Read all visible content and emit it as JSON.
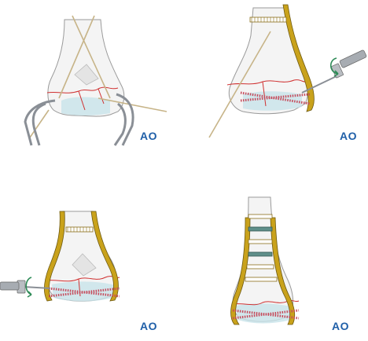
{
  "logo_text": "AO",
  "panels": [
    {
      "id": "step-1",
      "logo": "AO"
    },
    {
      "id": "step-2",
      "logo": "AO"
    },
    {
      "id": "step-3",
      "logo": "AO"
    },
    {
      "id": "step-4",
      "logo": "AO"
    }
  ],
  "colors": {
    "bone_fill": "#f4f4f4",
    "bone_stroke": "#9a9a9a",
    "cartilage": "#c8e3ea",
    "fracture_line": "#d03030",
    "plate": "#c9a21b",
    "plate_edge": "#6e5a12",
    "wire": "#c7b488",
    "screw_thread": "#c64a5a",
    "clamp": "#8a8f96",
    "rotation_arrow": "#2e8b57",
    "logo": "#1f5fa8"
  },
  "icons": [
    "drill-icon",
    "rotation-arrow-icon",
    "reduction-clamp-icon",
    "kirschner-wire-icon",
    "bone-plate-icon"
  ]
}
